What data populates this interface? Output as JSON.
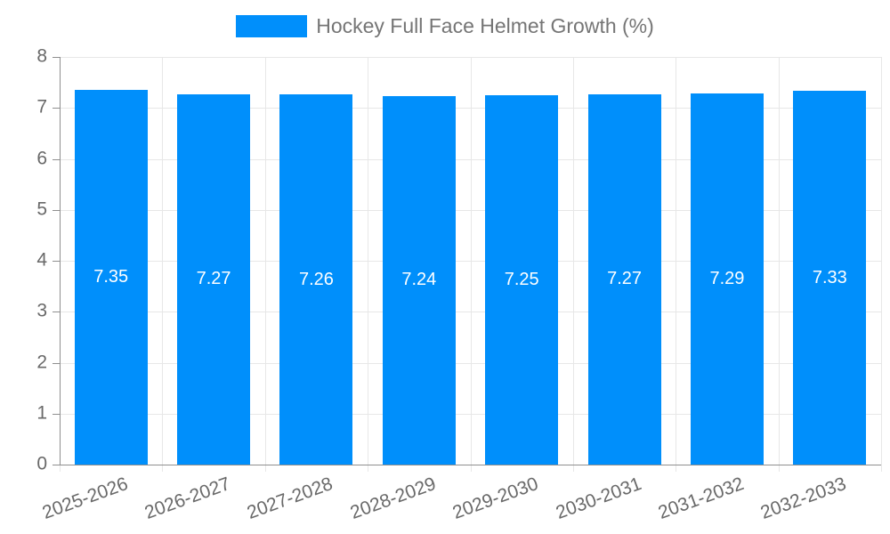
{
  "chart_data": {
    "type": "bar",
    "title": "",
    "series_name": "Hockey Full Face Helmet Growth (%)",
    "categories": [
      "2025-2026",
      "2026-2027",
      "2027-2028",
      "2028-2029",
      "2029-2030",
      "2030-2031",
      "2031-2032",
      "2032-2033"
    ],
    "values": [
      7.35,
      7.27,
      7.26,
      7.24,
      7.25,
      7.27,
      7.29,
      7.33
    ],
    "value_labels": [
      "7.35",
      "7.27",
      "7.26",
      "7.24",
      "7.25",
      "7.27",
      "7.29",
      "7.33"
    ],
    "xlabel": "",
    "ylabel": "",
    "ylim": [
      0,
      8
    ],
    "yticks": [
      0,
      1,
      2,
      3,
      4,
      5,
      6,
      7,
      8
    ],
    "grid": "on",
    "legend_position": "top",
    "x_label_rotation_deg": -20,
    "value_label_position": "center",
    "colors": {
      "bar": "#008FFB",
      "bar_label": "#ffffff",
      "axis_label": "#696969",
      "legend_text": "#757575",
      "grid": "#e7e7e7",
      "axis": "#8f8f8f"
    }
  }
}
